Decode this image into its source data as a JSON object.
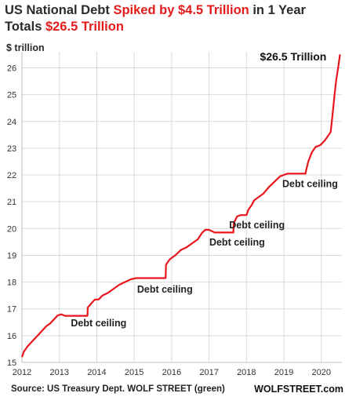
{
  "title": {
    "line1": {
      "a": "US National Debt ",
      "b": "Spiked by $4.5 Trillion",
      "c": " in 1 Year"
    },
    "line2": {
      "a": "Totals ",
      "b": "$26.5 Trillion"
    }
  },
  "footer": {
    "source": "Source: US Treasury Dept. WOLF STREET (green)",
    "brand": "WOLFSTREET.com"
  },
  "chart_data": {
    "type": "line",
    "ylabel": "$ trillion",
    "xlim": [
      2012,
      2020.55
    ],
    "ylim": [
      15,
      26.6
    ],
    "x_ticks": [
      2012,
      2013,
      2014,
      2015,
      2016,
      2017,
      2018,
      2019,
      2020
    ],
    "y_ticks": [
      15,
      16,
      17,
      18,
      19,
      20,
      21,
      22,
      23,
      24,
      25,
      26
    ],
    "grid": true,
    "line_color": "#e8161c",
    "series": [
      {
        "x": [
          2012.0,
          2012.05,
          2012.15,
          2012.25,
          2012.35,
          2012.45,
          2012.55,
          2012.65,
          2012.75,
          2012.85,
          2012.95,
          2013.05,
          2013.15,
          2013.25,
          2013.38,
          2013.5,
          2013.62,
          2013.75,
          2013.76,
          2013.85,
          2013.95,
          2014.05,
          2014.15,
          2014.3,
          2014.45,
          2014.6,
          2014.75,
          2014.9,
          2015.05,
          2015.15,
          2015.3,
          2015.45,
          2015.6,
          2015.75,
          2015.84,
          2015.85,
          2015.95,
          2016.1,
          2016.25,
          2016.4,
          2016.55,
          2016.7,
          2016.82,
          2016.9,
          2017.0,
          2017.15,
          2017.35,
          2017.55,
          2017.65,
          2017.66,
          2017.75,
          2017.85,
          2018.0,
          2018.05,
          2018.15,
          2018.2,
          2018.3,
          2018.45,
          2018.6,
          2018.75,
          2018.9,
          2019.0,
          2019.1,
          2019.3,
          2019.5,
          2019.58,
          2019.59,
          2019.65,
          2019.75,
          2019.85,
          2019.95,
          2020.0,
          2020.1,
          2020.2,
          2020.25,
          2020.3,
          2020.35,
          2020.4,
          2020.45,
          2020.5
        ],
        "y": [
          15.2,
          15.4,
          15.6,
          15.75,
          15.9,
          16.05,
          16.2,
          16.35,
          16.45,
          16.6,
          16.75,
          16.8,
          16.74,
          16.74,
          16.74,
          16.74,
          16.74,
          16.74,
          17.05,
          17.2,
          17.35,
          17.35,
          17.5,
          17.6,
          17.75,
          17.9,
          18.0,
          18.1,
          18.15,
          18.15,
          18.15,
          18.15,
          18.15,
          18.15,
          18.15,
          18.65,
          18.85,
          19.0,
          19.2,
          19.3,
          19.45,
          19.6,
          19.85,
          19.95,
          19.95,
          19.85,
          19.85,
          19.85,
          19.85,
          20.2,
          20.45,
          20.5,
          20.5,
          20.7,
          20.9,
          21.05,
          21.15,
          21.3,
          21.55,
          21.75,
          21.95,
          22.0,
          22.05,
          22.05,
          22.05,
          22.05,
          22.15,
          22.5,
          22.85,
          23.05,
          23.1,
          23.15,
          23.3,
          23.5,
          23.6,
          24.25,
          24.95,
          25.55,
          26.0,
          26.5
        ]
      }
    ],
    "annotations": [
      {
        "text": "Debt ceiling",
        "x": 2014.05,
        "y": 16.47
      },
      {
        "text": "Debt ceiling",
        "x": 2015.82,
        "y": 17.73
      },
      {
        "text": "Debt ceiling",
        "x": 2017.75,
        "y": 19.48
      },
      {
        "text": "Debt ceiling",
        "x": 2018.28,
        "y": 20.12
      },
      {
        "text": "Debt ceiling",
        "x": 2019.7,
        "y": 21.67
      },
      {
        "text": "$26.5 Trillion",
        "x": 2019.25,
        "y": 26.6
      }
    ]
  }
}
